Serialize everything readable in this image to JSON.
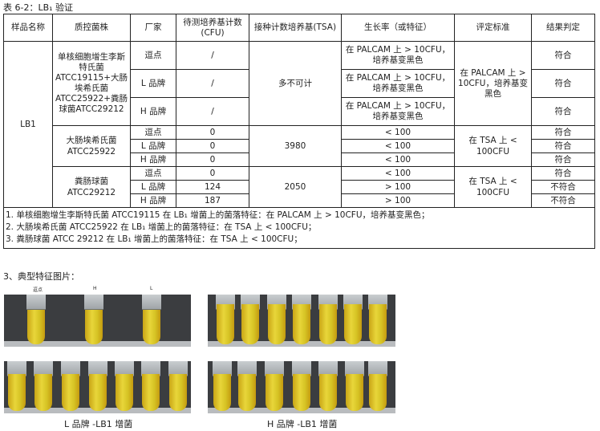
{
  "title": "表 6-2：LB₁ 验证",
  "headers": [
    "样品名称",
    "质控菌株",
    "厂家",
    "待测培养基计数(CFU)",
    "接种计数培养基(TSA)",
    "生长率（或特征）",
    "评定标准",
    "结果判定"
  ],
  "sample": "LB1",
  "group1": {
    "strain": "单核细胞增生李斯特氏菌ATCC19115+大肠埃希氏菌ATCC25922+粪肠球菌ATCC29212",
    "tsa": "多不可计",
    "standard": "在 PALCAM 上 > 10CFU，培养基变黑色",
    "rows": [
      {
        "maker": "逗点",
        "count": "/",
        "growth": "在 PALCAM 上 > 10CFU，培养基变黑色",
        "result": "符合"
      },
      {
        "maker": "L 品牌",
        "count": "/",
        "growth": "在 PALCAM 上 > 10CFU，培养基变黑色",
        "result": "符合"
      },
      {
        "maker": "H 品牌",
        "count": "/",
        "growth": "在 PALCAM 上 > 10CFU，培养基变黑色",
        "result": "符合"
      }
    ]
  },
  "group2": {
    "strain": "大肠埃希氏菌 ATCC25922",
    "tsa": "3980",
    "standard": "在 TSA 上 < 100CFU",
    "rows": [
      {
        "maker": "逗点",
        "count": "0",
        "growth": "< 100",
        "result": "符合"
      },
      {
        "maker": "L 品牌",
        "count": "0",
        "growth": "< 100",
        "result": "符合"
      },
      {
        "maker": "H 品牌",
        "count": "0",
        "growth": "< 100",
        "result": "符合"
      }
    ]
  },
  "group3": {
    "strain": "粪肠球菌 ATCC29212",
    "tsa": "2050",
    "standard": "在 TSA 上 < 100CFU",
    "rows": [
      {
        "maker": "逗点",
        "count": "0",
        "growth": "< 100",
        "result": "符合"
      },
      {
        "maker": "L 品牌",
        "count": "124",
        "growth": "> 100",
        "result": "不符合"
      },
      {
        "maker": "H 品牌",
        "count": "187",
        "growth": "> 100",
        "result": "不符合"
      }
    ]
  },
  "notes": [
    "1. 单核细胞增生李斯特氏菌 ATCC19115 在 LB₁ 增菌上的菌落特征：在 PALCAM 上 > 10CFU，培养基变黑色；",
    "2. 大肠埃希氏菌 ATCC25922 在 LB₁ 增菌上的菌落特征：在 TSA 上 < 100CFU；",
    "3. 粪肠球菌 ATCC 29212 在 LB₁ 增菌上的菌落特征：在 TSA 上 < 100CFU；"
  ],
  "section": "3、典型特征图片：",
  "photo_labels": [
    "逗点",
    "H",
    "L"
  ],
  "captions": [
    "L 品牌 -LB1 增菌",
    "H 品牌 -LB1 增菌"
  ]
}
